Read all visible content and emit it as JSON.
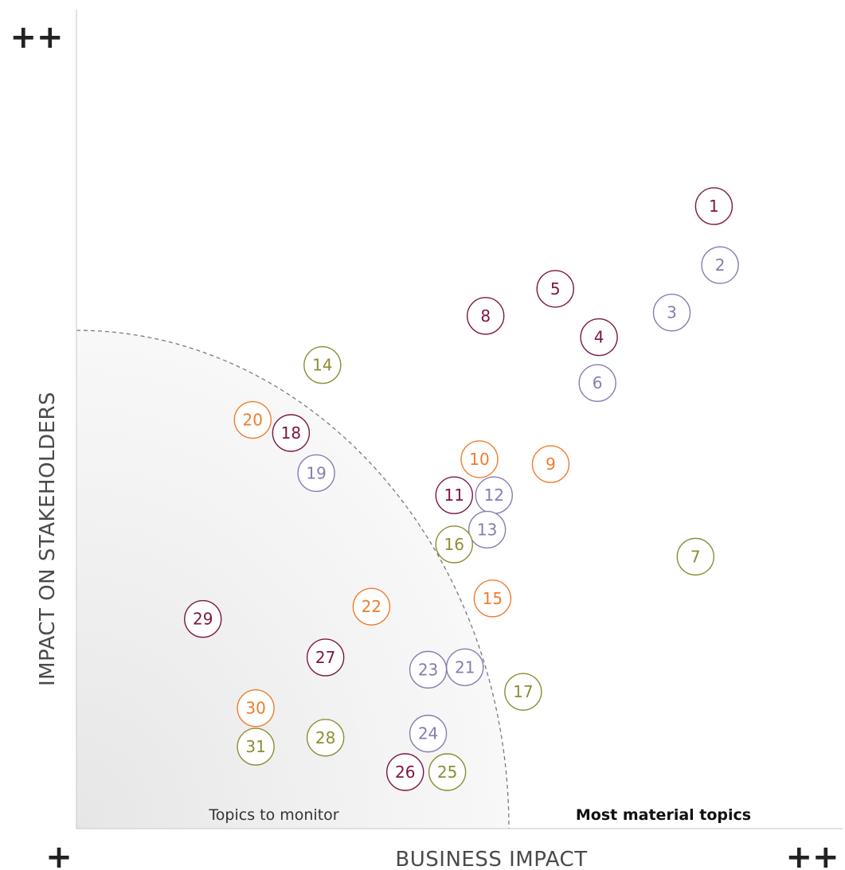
{
  "chart_data": {
    "type": "scatter",
    "xlabel": "BUSINESS IMPACT",
    "ylabel": "IMPACT ON STAKEHOLDERS",
    "xlim": [
      0,
      100
    ],
    "ylim": [
      0,
      100
    ],
    "grid": false,
    "legend": "none",
    "axis_markers": {
      "x_low": "+",
      "x_high": "++",
      "y_high": "++"
    },
    "regions": {
      "inner_label": "Topics to monitor",
      "outer_label": "Most material topics"
    },
    "colors": {
      "c1": "#7a1645",
      "c2": "#8a7bb0",
      "c3": "#f07c2e",
      "c4": "#8c8d33"
    },
    "points": [
      {
        "label": "1",
        "x": 83.2,
        "y": 76.0,
        "color": "c1"
      },
      {
        "label": "2",
        "x": 84.0,
        "y": 68.8,
        "color": "c2"
      },
      {
        "label": "3",
        "x": 77.7,
        "y": 63.0,
        "color": "c2"
      },
      {
        "label": "4",
        "x": 68.2,
        "y": 60.0,
        "color": "c1"
      },
      {
        "label": "5",
        "x": 62.5,
        "y": 65.9,
        "color": "c1"
      },
      {
        "label": "6",
        "x": 68.0,
        "y": 54.4,
        "color": "c2"
      },
      {
        "label": "7",
        "x": 80.8,
        "y": 33.2,
        "color": "c4"
      },
      {
        "label": "8",
        "x": 53.4,
        "y": 62.6,
        "color": "c1"
      },
      {
        "label": "9",
        "x": 61.9,
        "y": 44.5,
        "color": "c3"
      },
      {
        "label": "10",
        "x": 52.6,
        "y": 45.1,
        "color": "c3"
      },
      {
        "label": "11",
        "x": 49.3,
        "y": 40.7,
        "color": "c1"
      },
      {
        "label": "12",
        "x": 54.5,
        "y": 40.7,
        "color": "c2"
      },
      {
        "label": "13",
        "x": 53.6,
        "y": 36.5,
        "color": "c2"
      },
      {
        "label": "14",
        "x": 32.1,
        "y": 56.6,
        "color": "c4"
      },
      {
        "label": "15",
        "x": 54.3,
        "y": 28.1,
        "color": "c3"
      },
      {
        "label": "16",
        "x": 49.3,
        "y": 34.7,
        "color": "c4"
      },
      {
        "label": "17",
        "x": 58.3,
        "y": 16.7,
        "color": "c4"
      },
      {
        "label": "18",
        "x": 28.0,
        "y": 48.3,
        "color": "c1"
      },
      {
        "label": "19",
        "x": 31.3,
        "y": 43.4,
        "color": "c2"
      },
      {
        "label": "20",
        "x": 23.0,
        "y": 49.9,
        "color": "c3"
      },
      {
        "label": "21",
        "x": 50.7,
        "y": 19.7,
        "color": "c2"
      },
      {
        "label": "22",
        "x": 38.5,
        "y": 27.1,
        "color": "c3"
      },
      {
        "label": "23",
        "x": 45.9,
        "y": 19.4,
        "color": "c2"
      },
      {
        "label": "24",
        "x": 45.9,
        "y": 11.6,
        "color": "c2"
      },
      {
        "label": "25",
        "x": 48.4,
        "y": 6.9,
        "color": "c4"
      },
      {
        "label": "26",
        "x": 42.9,
        "y": 6.9,
        "color": "c1"
      },
      {
        "label": "27",
        "x": 32.5,
        "y": 20.9,
        "color": "c1"
      },
      {
        "label": "28",
        "x": 32.5,
        "y": 11.1,
        "color": "c4"
      },
      {
        "label": "29",
        "x": 16.5,
        "y": 25.6,
        "color": "c1"
      },
      {
        "label": "30",
        "x": 23.4,
        "y": 14.7,
        "color": "c3"
      },
      {
        "label": "31",
        "x": 23.4,
        "y": 10.0,
        "color": "c4"
      }
    ]
  }
}
